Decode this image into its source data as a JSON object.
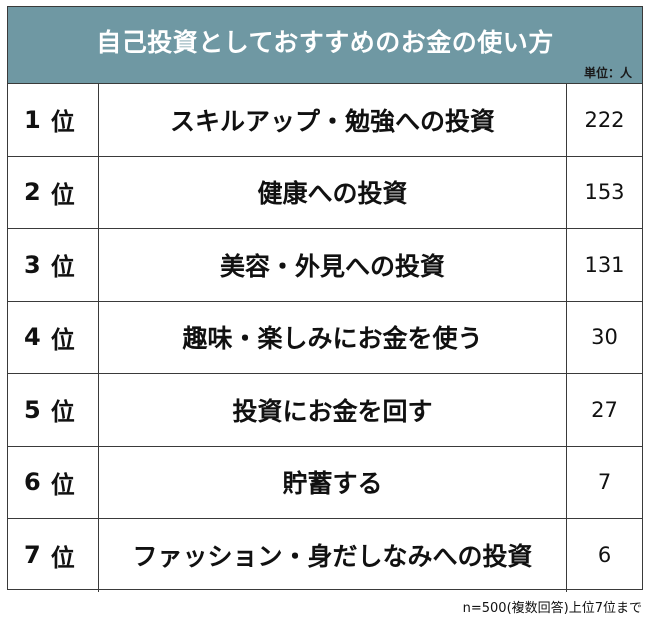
{
  "chart_data": {
    "type": "table",
    "title": "自己投資としておすすめのお金の使い方",
    "unit_label": "単位：人",
    "rank_suffix": "位",
    "categories": [
      "スキルアップ・勉強への投資",
      "健康への投資",
      "美容・外見への投資",
      "趣味・楽しみにお金を使う",
      "投資にお金を回す",
      "貯蓄する",
      "ファッション・身だしなみへの投資"
    ],
    "ranks": [
      1,
      2,
      3,
      4,
      5,
      6,
      7
    ],
    "values": [
      222,
      153,
      131,
      30,
      27,
      7,
      6
    ],
    "footnote": "n=500(複数回答)上位7位まで"
  },
  "colors": {
    "header_background": "#6f98a3",
    "header_text": "#ffffff",
    "border": "#3a3a3a"
  }
}
